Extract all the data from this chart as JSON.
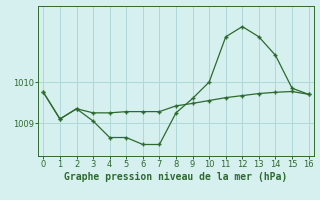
{
  "title": "Graphe pression niveau de la mer (hPa)",
  "background_color": "#d6f0f0",
  "grid_color": "#b0d8d8",
  "line_color": "#2d6a2d",
  "x_min": -0.3,
  "x_max": 16.3,
  "y_min": 1008.2,
  "y_max": 1011.85,
  "yticks": [
    1009,
    1010
  ],
  "xticks": [
    0,
    1,
    2,
    3,
    4,
    5,
    6,
    7,
    8,
    9,
    10,
    11,
    12,
    13,
    14,
    15,
    16
  ],
  "series1_x": [
    0,
    1,
    2,
    3,
    4,
    5,
    6,
    7,
    8,
    9,
    10,
    11,
    12,
    13,
    14,
    15,
    16
  ],
  "series1_y": [
    1009.75,
    1009.1,
    1009.35,
    1009.05,
    1008.65,
    1008.65,
    1008.48,
    1008.48,
    1009.25,
    1009.6,
    1010.0,
    1011.1,
    1011.35,
    1011.1,
    1010.65,
    1009.85,
    1009.7
  ],
  "series2_x": [
    0,
    1,
    2,
    3,
    4,
    5,
    6,
    7,
    8,
    9,
    10,
    11,
    12,
    13,
    14,
    15,
    16
  ],
  "series2_y": [
    1009.75,
    1009.1,
    1009.35,
    1009.25,
    1009.25,
    1009.28,
    1009.28,
    1009.28,
    1009.42,
    1009.48,
    1009.55,
    1009.62,
    1009.67,
    1009.72,
    1009.75,
    1009.77,
    1009.7
  ],
  "tick_fontsize": 6,
  "xlabel_fontsize": 7
}
